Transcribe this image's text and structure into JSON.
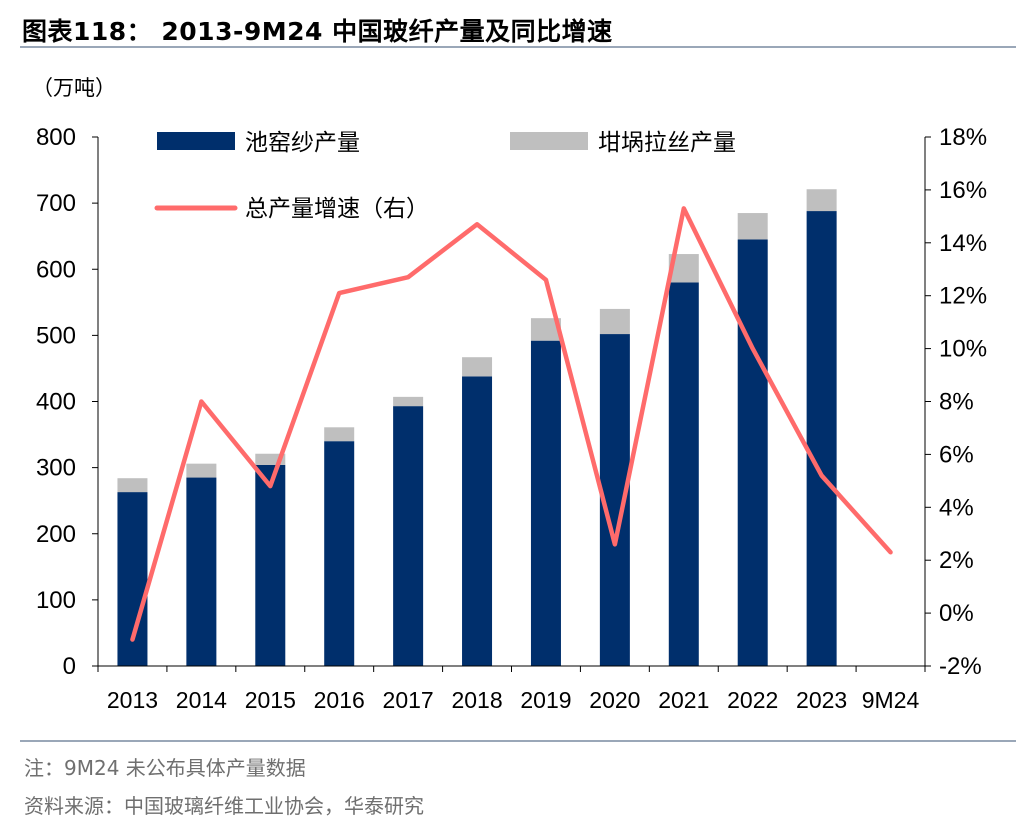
{
  "header": {
    "title": "图表118：  2013-9M24 中国玻纤产量及同比增速",
    "unit": "（万吨）"
  },
  "chart_data": {
    "type": "bar",
    "stacked": true,
    "categories": [
      "2013",
      "2014",
      "2015",
      "2016",
      "2017",
      "2018",
      "2019",
      "2020",
      "2021",
      "2022",
      "2023",
      "9M24"
    ],
    "series": [
      {
        "name": "池窑纱产量",
        "axis": "left",
        "color": "#002f6c",
        "values": [
          263,
          285,
          304,
          340,
          393,
          438,
          492,
          502,
          580,
          645,
          688,
          null
        ]
      },
      {
        "name": "坩埚拉丝产量",
        "axis": "left",
        "color": "#bfbfbf",
        "values": [
          21,
          21,
          17,
          21,
          14,
          29,
          34,
          38,
          43,
          40,
          33,
          null
        ]
      },
      {
        "name": "总产量增速（右）",
        "axis": "right",
        "type": "line",
        "color": "#ff6b6b",
        "values": [
          -1.0,
          8.0,
          4.8,
          12.1,
          12.7,
          14.7,
          12.6,
          2.6,
          15.3,
          10.0,
          5.2,
          2.3
        ]
      }
    ],
    "ylim": [
      0,
      800
    ],
    "yticks": [
      "0",
      "100",
      "200",
      "300",
      "400",
      "500",
      "600",
      "700",
      "800"
    ],
    "y2lim": [
      -2,
      18
    ],
    "y2ticks": [
      "-2%",
      "0%",
      "2%",
      "4%",
      "6%",
      "8%",
      "10%",
      "12%",
      "14%",
      "16%",
      "18%"
    ],
    "legend_position": "top",
    "grid": false
  },
  "footer": {
    "note": "注：9M24 未公布具体产量数据",
    "source": "资料来源：中国玻璃纤维工业协会，华泰研究"
  }
}
